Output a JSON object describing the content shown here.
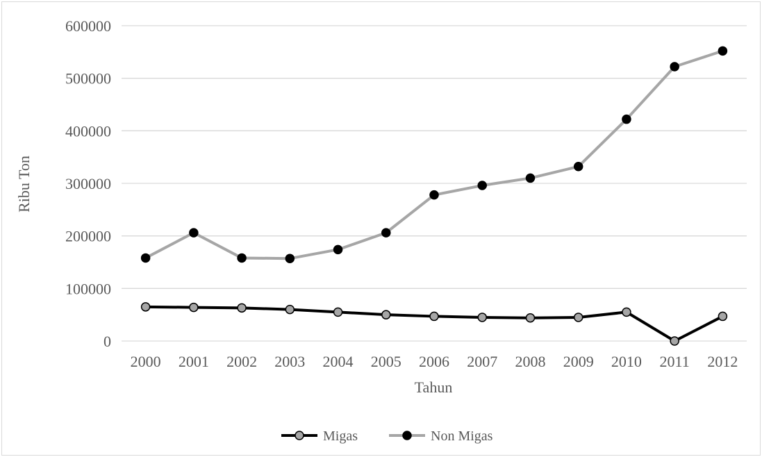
{
  "chart_data": {
    "type": "line",
    "title": "",
    "xlabel": "Tahun",
    "ylabel": "Ribu Ton",
    "x": [
      "2000",
      "2001",
      "2002",
      "2003",
      "2004",
      "2005",
      "2006",
      "2007",
      "2008",
      "2009",
      "2010",
      "2011",
      "2012"
    ],
    "ylim": [
      0,
      600000
    ],
    "yticks": [
      "0",
      "100000",
      "200000",
      "300000",
      "400000",
      "500000",
      "600000"
    ],
    "grid": true,
    "legend_position": "bottom",
    "series": [
      {
        "name": "Migas",
        "color": "#000000",
        "marker_color": "#a6a6a6",
        "values": [
          65000,
          64000,
          63000,
          60000,
          55000,
          50000,
          47000,
          45000,
          44000,
          45000,
          55000,
          0,
          47000
        ]
      },
      {
        "name": "Non Migas",
        "color": "#a6a6a6",
        "marker_color": "#000000",
        "values": [
          158000,
          206000,
          158000,
          157000,
          174000,
          206000,
          278000,
          296000,
          310000,
          332000,
          422000,
          522000,
          552000
        ]
      }
    ]
  }
}
